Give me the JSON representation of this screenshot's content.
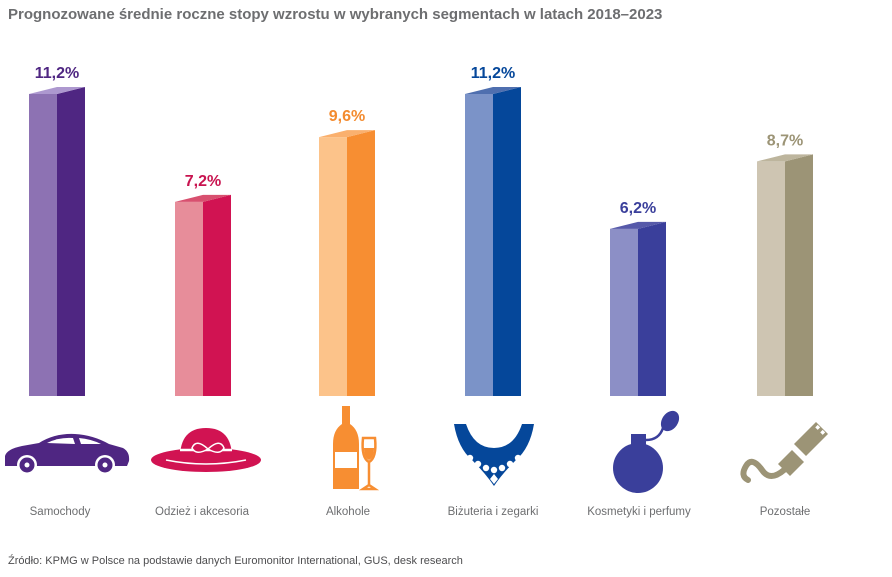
{
  "title": "Prognozowane średnie roczne stopy wzrostu w wybranych segmentach w latach 2018–2023",
  "source": "Źródło: KPMG w Polsce na podstawie danych Euromonitor International, GUS, desk research",
  "chart_data": {
    "type": "bar",
    "title": "Prognozowane średnie roczne stopy wzrostu w wybranych segmentach w latach 2018–2023",
    "xlabel": "",
    "ylabel": "",
    "unit": "%",
    "ylim": [
      0,
      11.2
    ],
    "categories": [
      "Samochody",
      "Odzież i akcesoria",
      "Alkohole",
      "Biżuteria i zegarki",
      "Kosmetyki i perfumy",
      "Pozostałe"
    ],
    "values": [
      11.2,
      7.2,
      9.6,
      11.2,
      6.2,
      8.7
    ],
    "value_labels": [
      "11,2%",
      "7,2%",
      "9,6%",
      "11,2%",
      "6,2%",
      "8,7%"
    ],
    "icons": [
      "car-icon",
      "hat-icon",
      "wine-bottle-icon",
      "necklace-icon",
      "perfume-icon",
      "usb-plug-icon"
    ],
    "colors": [
      {
        "front": "#8d72b3",
        "side": "#4f2682",
        "top": "#ad98cf",
        "label": "#4f2682"
      },
      {
        "front": "#e78d9a",
        "side": "#d11352",
        "top": "#d8506f",
        "label": "#c8134f"
      },
      {
        "front": "#fcc38a",
        "side": "#f78e32",
        "top": "#fab06e",
        "label": "#f38b2f"
      },
      {
        "front": "#7b93c8",
        "side": "#05479a",
        "top": "#4f6faf",
        "label": "#05479a"
      },
      {
        "front": "#8c8fc6",
        "side": "#3a3f9b",
        "top": "#5659a9",
        "label": "#3a3f9b"
      },
      {
        "front": "#cec5b2",
        "side": "#9c9476",
        "top": "#bdb59d",
        "label": "#9c9476"
      }
    ]
  }
}
